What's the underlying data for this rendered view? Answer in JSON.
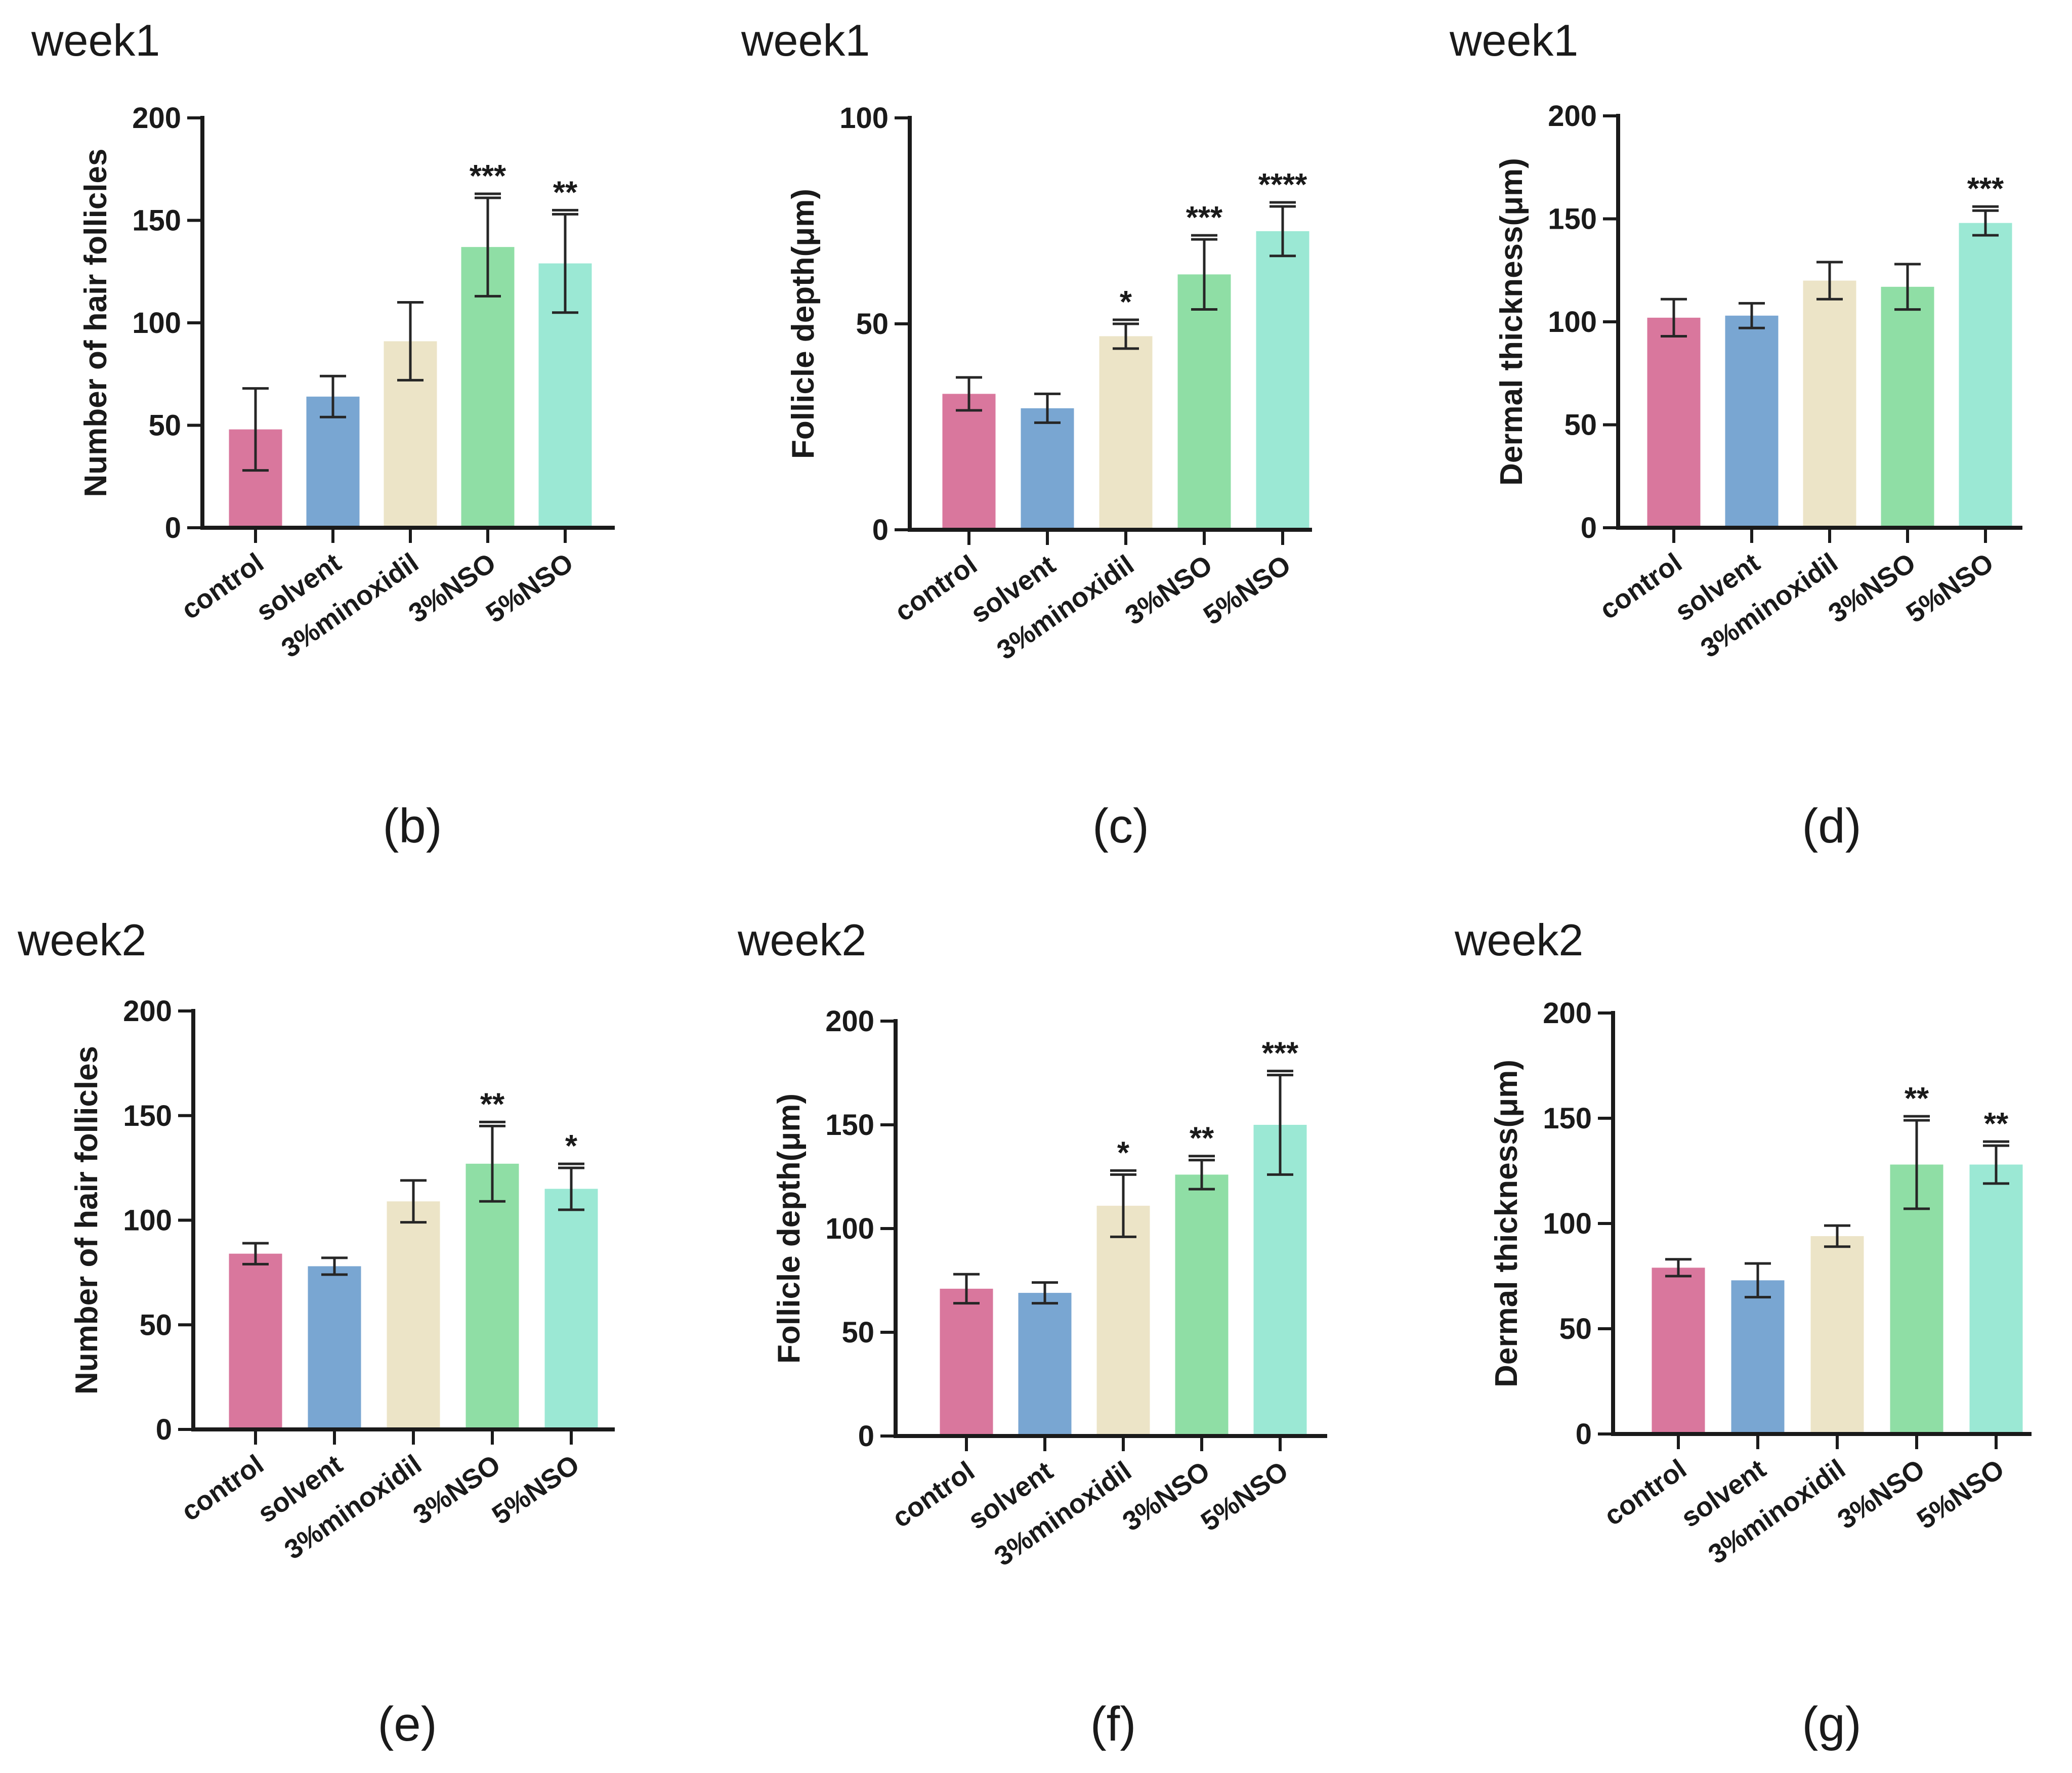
{
  "figure": {
    "colors": {
      "control": "#d9779d",
      "solvent": "#79a6d2",
      "3%minoxidil": "#ece4c7",
      "3%NSO": "#8fdea5",
      "5%NSO": "#9be8d4"
    }
  },
  "chart_data": [
    {
      "type": "bar",
      "week": "week1",
      "panel": "(b)",
      "ylabel": "Number of hair follicles",
      "categories": [
        "control",
        "solvent",
        "3%minoxidil",
        "3%NSO",
        "5%NSO"
      ],
      "values": [
        48,
        64,
        91,
        137,
        129
      ],
      "errors": [
        20,
        10,
        19,
        24,
        24
      ],
      "significance": [
        "",
        "",
        "",
        "***",
        "**"
      ],
      "ylim": [
        0,
        200
      ],
      "yticks": [
        0,
        50,
        100,
        150,
        200
      ]
    },
    {
      "type": "bar",
      "week": "week1",
      "panel": "(c)",
      "ylabel": "Follicle depth(μm)",
      "categories": [
        "control",
        "solvent",
        "3%minoxidil",
        "3%NSO",
        "5%NSO"
      ],
      "values": [
        33,
        29.5,
        47,
        62,
        72.5
      ],
      "errors": [
        4,
        3.5,
        3,
        8.5,
        6
      ],
      "significance": [
        "",
        "",
        "*",
        "***",
        "****"
      ],
      "ylim": [
        0,
        100
      ],
      "yticks": [
        0,
        50,
        100
      ]
    },
    {
      "type": "bar",
      "week": "week1",
      "panel": "(d)",
      "ylabel": "Dermal thickness(μm)",
      "categories": [
        "control",
        "solvent",
        "3%minoxidil",
        "3%NSO",
        "5%NSO"
      ],
      "values": [
        102,
        103,
        120,
        117,
        148
      ],
      "errors": [
        9,
        6,
        9,
        11,
        6
      ],
      "significance": [
        "",
        "",
        "",
        "",
        "***"
      ],
      "ylim": [
        0,
        200
      ],
      "yticks": [
        0,
        50,
        100,
        150,
        200
      ]
    },
    {
      "type": "bar",
      "week": "week2",
      "panel": "(e)",
      "ylabel": "Number of hair follicles",
      "categories": [
        "control",
        "solvent",
        "3%minoxidil",
        "3%NSO",
        "5%NSO"
      ],
      "values": [
        84,
        78,
        109,
        127,
        115
      ],
      "errors": [
        5,
        4,
        10,
        18,
        10
      ],
      "significance": [
        "",
        "",
        "",
        "**",
        "*"
      ],
      "ylim": [
        0,
        200
      ],
      "yticks": [
        0,
        50,
        100,
        150,
        200
      ]
    },
    {
      "type": "bar",
      "week": "week2",
      "panel": "(f)",
      "ylabel": "Follicle depth(μm)",
      "categories": [
        "control",
        "solvent",
        "3%minoxidil",
        "3%NSO",
        "5%NSO"
      ],
      "values": [
        71,
        69,
        111,
        126,
        150
      ],
      "errors": [
        7,
        5,
        15,
        7,
        24
      ],
      "significance": [
        "",
        "",
        "*",
        "**",
        "***"
      ],
      "ylim": [
        0,
        200
      ],
      "yticks": [
        0,
        50,
        100,
        150,
        200
      ]
    },
    {
      "type": "bar",
      "week": "week2",
      "panel": "(g)",
      "ylabel": "Dermal thickness(μm)",
      "categories": [
        "control",
        "solvent",
        "3%minoxidil",
        "3%NSO",
        "5%NSO"
      ],
      "values": [
        79,
        73,
        94,
        128,
        128
      ],
      "errors": [
        4,
        8,
        5,
        21,
        9
      ],
      "significance": [
        "",
        "",
        "",
        "**",
        "**"
      ],
      "ylim": [
        0,
        200
      ],
      "yticks": [
        0,
        50,
        100,
        150,
        200
      ]
    }
  ]
}
